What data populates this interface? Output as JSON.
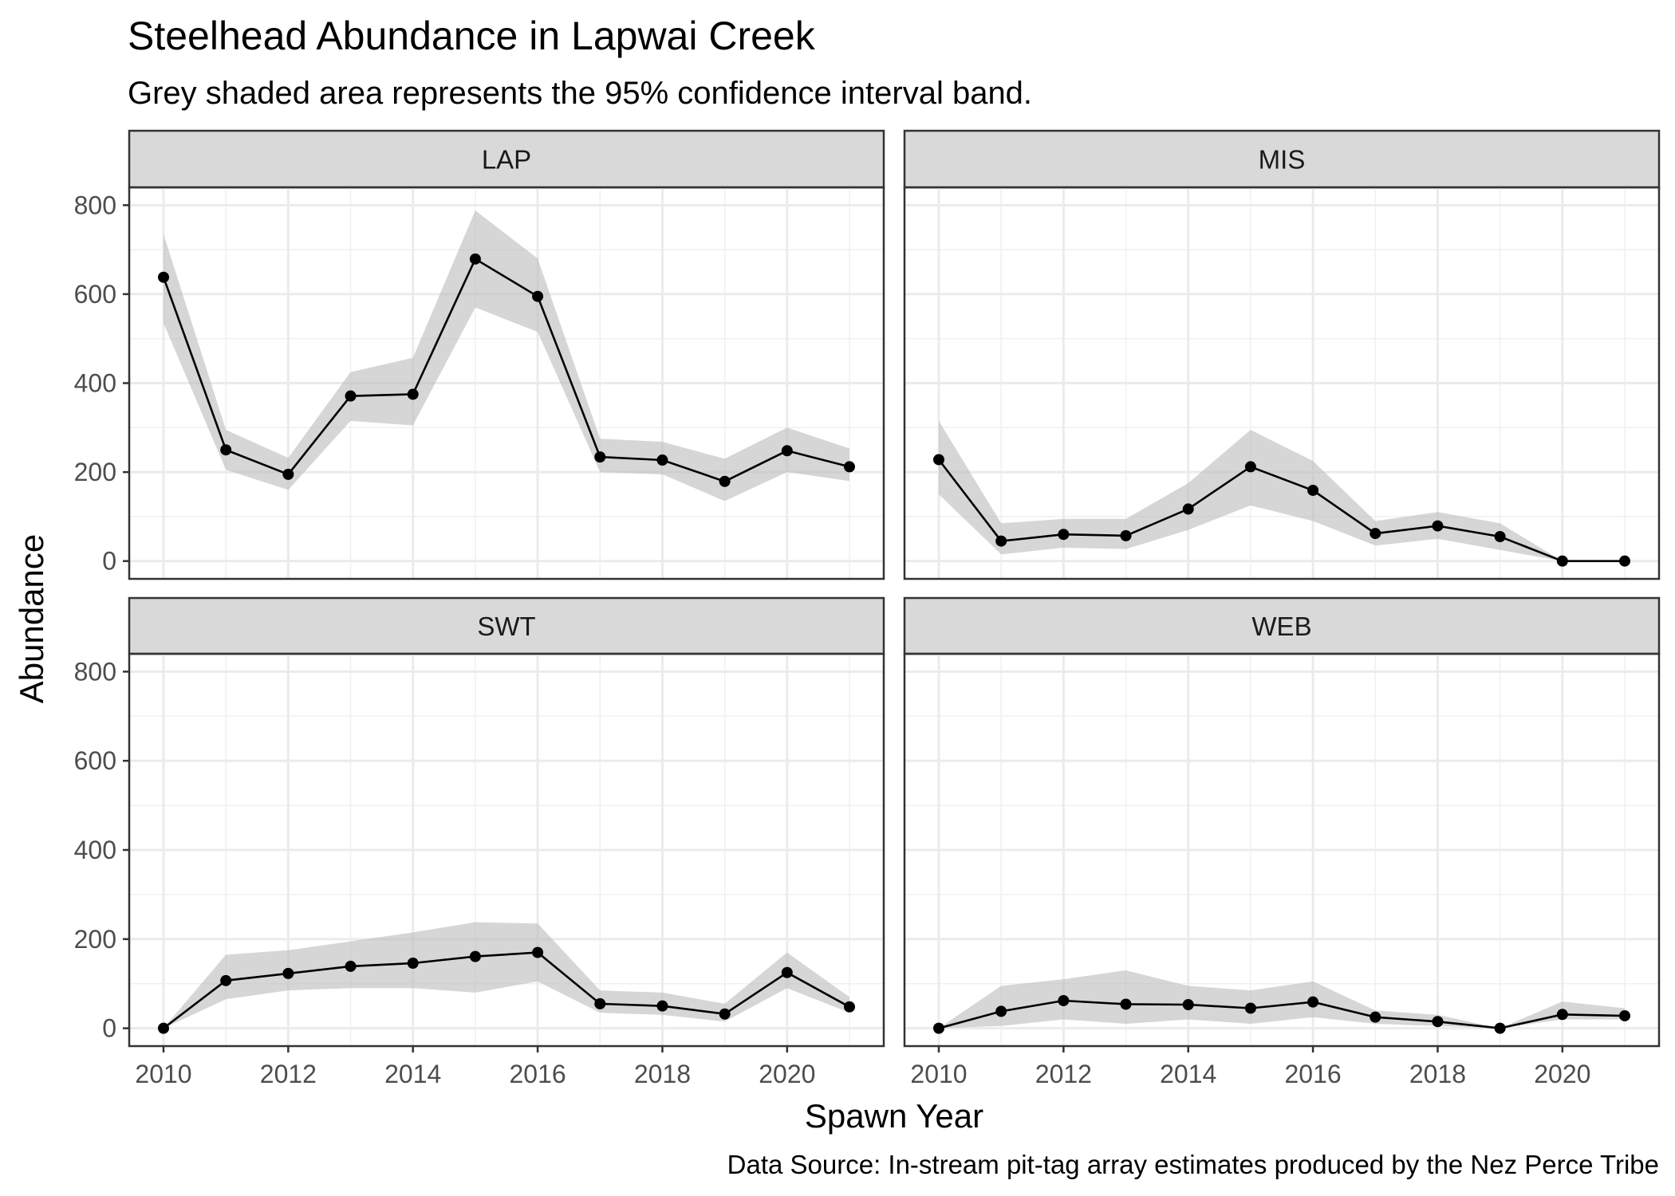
{
  "chart_data": {
    "type": "line",
    "title": "Steelhead Abundance in Lapwai Creek",
    "subtitle": "Grey shaded area represents the 95% confidence interval band.",
    "xlabel": "Spawn Year",
    "ylabel": "Abundance",
    "caption": "Data Source: In-stream pit-tag array estimates produced by the Nez Perce Tribe",
    "xlim": [
      2009.45,
      2021.55
    ],
    "ylim": [
      -40,
      840
    ],
    "x_ticks": [
      2010,
      2012,
      2014,
      2016,
      2018,
      2020
    ],
    "y_ticks": [
      0,
      200,
      400,
      600,
      800
    ],
    "x": [
      2010,
      2011,
      2012,
      2013,
      2014,
      2015,
      2016,
      2017,
      2018,
      2019,
      2020,
      2021
    ],
    "grid": true,
    "facets": [
      {
        "name": "LAP",
        "values": [
          638,
          250,
          195,
          371,
          375,
          679,
          595,
          234,
          227,
          179,
          248,
          212
        ],
        "lower": [
          535,
          205,
          160,
          315,
          305,
          570,
          515,
          200,
          195,
          135,
          200,
          180
        ],
        "upper": [
          735,
          295,
          232,
          425,
          457,
          788,
          680,
          275,
          268,
          230,
          300,
          253
        ]
      },
      {
        "name": "MIS",
        "values": [
          228,
          45,
          60,
          57,
          117,
          212,
          159,
          62,
          79,
          55,
          0,
          0
        ],
        "lower": [
          150,
          15,
          30,
          27,
          70,
          125,
          90,
          35,
          50,
          25,
          0,
          0
        ],
        "upper": [
          315,
          85,
          95,
          95,
          175,
          295,
          225,
          90,
          110,
          85,
          0,
          0
        ]
      },
      {
        "name": "SWT",
        "values": [
          0,
          107,
          123,
          139,
          146,
          161,
          170,
          55,
          50,
          32,
          125,
          48
        ],
        "lower": [
          0,
          65,
          85,
          90,
          90,
          80,
          105,
          35,
          30,
          15,
          90,
          35
        ],
        "upper": [
          0,
          165,
          175,
          195,
          215,
          238,
          235,
          85,
          80,
          55,
          170,
          70
        ]
      },
      {
        "name": "WEB",
        "values": [
          0,
          38,
          62,
          54,
          53,
          45,
          59,
          25,
          15,
          0,
          31,
          28
        ],
        "lower": [
          0,
          5,
          20,
          10,
          20,
          10,
          25,
          10,
          5,
          0,
          20,
          20
        ],
        "upper": [
          0,
          95,
          110,
          130,
          95,
          85,
          105,
          40,
          30,
          0,
          60,
          45
        ]
      }
    ]
  }
}
